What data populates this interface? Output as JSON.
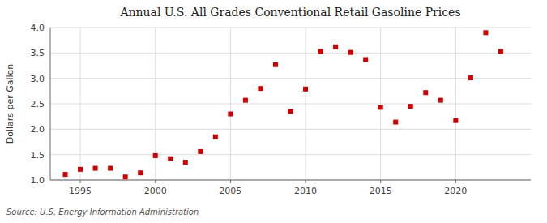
{
  "chart_data": {
    "type": "scatter",
    "title": "Annual U.S. All Grades Conventional Retail Gasoline Prices",
    "ylabel": "Dollars per Gallon",
    "source": "Source: U.S. Energy Information Administration",
    "x": [
      1994,
      1995,
      1996,
      1997,
      1998,
      1999,
      2000,
      2001,
      2002,
      2003,
      2004,
      2005,
      2006,
      2007,
      2008,
      2009,
      2010,
      2011,
      2012,
      2013,
      2014,
      2015,
      2016,
      2017,
      2018,
      2019,
      2020,
      2021,
      2022,
      2023
    ],
    "values": [
      1.11,
      1.21,
      1.23,
      1.23,
      1.06,
      1.14,
      1.48,
      1.42,
      1.35,
      1.56,
      1.85,
      2.3,
      2.57,
      2.8,
      3.27,
      2.35,
      2.79,
      3.53,
      3.62,
      3.51,
      3.37,
      2.43,
      2.14,
      2.45,
      2.72,
      2.57,
      2.17,
      3.01,
      3.9,
      3.53
    ],
    "color": "#cc0000",
    "marker": "square",
    "xlim": [
      1993.0,
      2025.0
    ],
    "ylim": [
      1.0,
      4.0
    ],
    "xticks": [
      1995,
      2000,
      2005,
      2010,
      2015,
      2020
    ],
    "yticks": [
      {
        "value": 1.0,
        "label": "1.0"
      },
      1.5,
      {
        "value": 2.0,
        "label": "2.0"
      },
      2.5,
      {
        "value": 3.0,
        "label": "3.0"
      },
      3.5,
      {
        "value": 4.0,
        "label": "4.0"
      }
    ],
    "grid": true
  }
}
